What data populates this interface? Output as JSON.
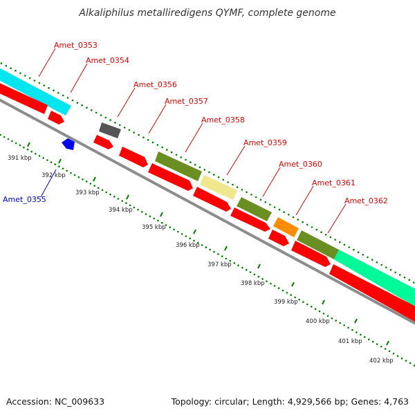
{
  "title": "Alkaliphilus metalliredigens QYMF, complete genome",
  "footer": {
    "accession": "Accession: NC_009633",
    "topology": "Topology: circular; Length: 4,929,566 bp; Genes: 4,763"
  },
  "colors": {
    "cds": "#ff0000",
    "backbone": "#8c8c8c",
    "ticks": "#008000",
    "label_red": "#e00000",
    "label_blue": "#0000cc",
    "cyan": "#00e5ee",
    "gray": "#555555",
    "olive": "#6b8e23",
    "khaki": "#f0e68c",
    "orange": "#ff8c00",
    "spring_green": "#00fa9a",
    "blue": "#0000ff"
  },
  "ticks": [
    {
      "label": "391 kbp"
    },
    {
      "label": "392 kbp"
    },
    {
      "label": "393 kbp"
    },
    {
      "label": "394 kbp"
    },
    {
      "label": "395 kbp"
    },
    {
      "label": "396 kbp"
    },
    {
      "label": "397 kbp"
    },
    {
      "label": "398 kbp"
    },
    {
      "label": "399 kbp"
    },
    {
      "label": "400 kbp"
    },
    {
      "label": "401 kbp"
    },
    {
      "label": "402 kbp"
    }
  ],
  "gene_labels": [
    {
      "name": "Amet_0353",
      "color": "red"
    },
    {
      "name": "Amet_0354",
      "color": "red"
    },
    {
      "name": "Amet_0355",
      "color": "blue"
    },
    {
      "name": "Amet_0356",
      "color": "red"
    },
    {
      "name": "Amet_0357",
      "color": "red"
    },
    {
      "name": "Amet_0358",
      "color": "red"
    },
    {
      "name": "Amet_0359",
      "color": "red"
    },
    {
      "name": "Amet_0360",
      "color": "red"
    },
    {
      "name": "Amet_0361",
      "color": "red"
    },
    {
      "name": "Amet_0362",
      "color": "red"
    }
  ]
}
